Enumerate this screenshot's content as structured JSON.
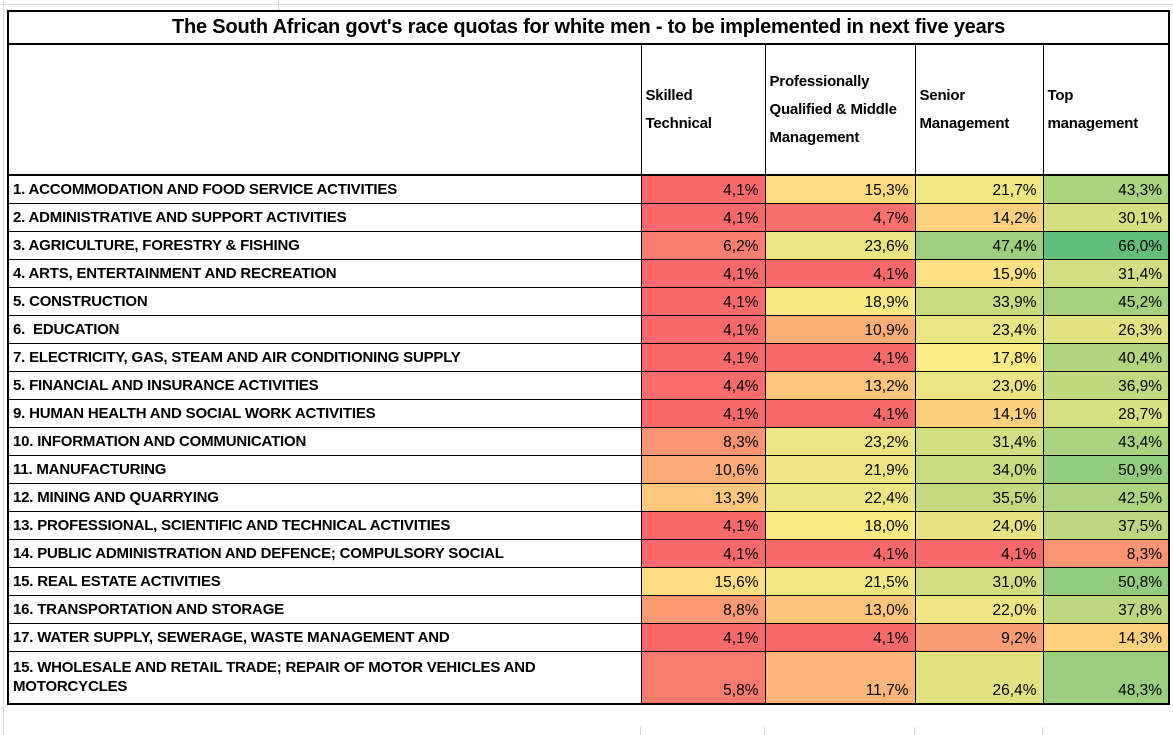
{
  "chart_data": {
    "type": "table",
    "title": "The South African govt's race quotas for white men - to be implemented in next five years",
    "columns": [
      "Skilled Technical",
      "Professionally Qualified & Middle Management",
      "Senior Management",
      "Top management"
    ],
    "value_format": "one-decimal-comma-percent",
    "color_scale": {
      "min_value": 4.1,
      "min_color": "#F8696B",
      "mid_value": 16.85,
      "mid_color": "#FFEB84",
      "max_value": 66.0,
      "max_color": "#63BE7B"
    },
    "rows": [
      {
        "label": "1. ACCOMMODATION AND FOOD SERVICE ACTIVITIES",
        "values": [
          4.1,
          15.3,
          21.7,
          43.3
        ]
      },
      {
        "label": "2. ADMINISTRATIVE AND SUPPORT ACTIVITIES",
        "values": [
          4.1,
          4.7,
          14.2,
          30.1
        ]
      },
      {
        "label": "3. AGRICULTURE, FORESTRY & FISHING",
        "values": [
          6.2,
          23.6,
          47.4,
          66.0
        ]
      },
      {
        "label": "4. ARTS, ENTERTAINMENT AND RECREATION",
        "values": [
          4.1,
          4.1,
          15.9,
          31.4
        ]
      },
      {
        "label": "5. CONSTRUCTION",
        "values": [
          4.1,
          18.9,
          33.9,
          45.2
        ]
      },
      {
        "label": "6.  EDUCATION",
        "values": [
          4.1,
          10.9,
          23.4,
          26.3
        ]
      },
      {
        "label": "7. ELECTRICITY, GAS, STEAM AND AIR CONDITIONING SUPPLY",
        "values": [
          4.1,
          4.1,
          17.8,
          40.4
        ]
      },
      {
        "label": "5. FINANCIAL AND INSURANCE ACTIVITIES",
        "values": [
          4.4,
          13.2,
          23.0,
          36.9
        ]
      },
      {
        "label": "9. HUMAN HEALTH AND SOCIAL WORK ACTIVITIES",
        "values": [
          4.1,
          4.1,
          14.1,
          28.7
        ]
      },
      {
        "label": "10. INFORMATION AND COMMUNICATION",
        "values": [
          8.3,
          23.2,
          31.4,
          43.4
        ]
      },
      {
        "label": "11. MANUFACTURING",
        "values": [
          10.6,
          21.9,
          34.0,
          50.9
        ]
      },
      {
        "label": "12. MINING AND QUARRYING",
        "values": [
          13.3,
          22.4,
          35.5,
          42.5
        ]
      },
      {
        "label": "13. PROFESSIONAL, SCIENTIFIC AND TECHNICAL ACTIVITIES",
        "values": [
          4.1,
          18.0,
          24.0,
          37.5
        ]
      },
      {
        "label": "14. PUBLIC ADMINISTRATION AND DEFENCE; COMPULSORY SOCIAL",
        "values": [
          4.1,
          4.1,
          4.1,
          8.3
        ]
      },
      {
        "label": "15. REAL ESTATE ACTIVITIES",
        "values": [
          15.6,
          21.5,
          31.0,
          50.8
        ]
      },
      {
        "label": "16. TRANSPORTATION AND STORAGE",
        "values": [
          8.8,
          13.0,
          22.0,
          37.8
        ]
      },
      {
        "label": "17. WATER SUPPLY, SEWERAGE, WASTE MANAGEMENT AND",
        "values": [
          4.1,
          4.1,
          9.2,
          14.3
        ]
      },
      {
        "label": "15. WHOLESALE AND RETAIL TRADE; REPAIR OF MOTOR VEHICLES AND MOTORCYCLES",
        "values": [
          5.8,
          11.7,
          26.4,
          48.3
        ]
      }
    ]
  }
}
